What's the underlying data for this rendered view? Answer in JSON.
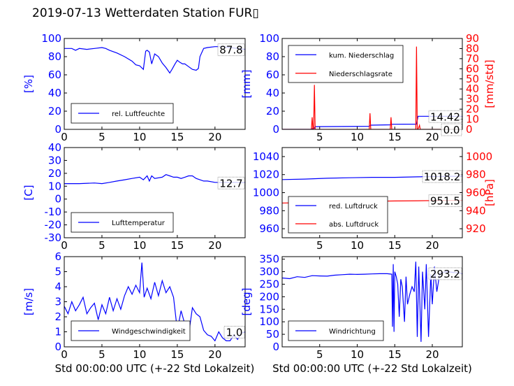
{
  "title": "2019-07-13 Wetterdaten Station FUR▯",
  "xlabel": "Std 00:00:00 UTC (+-22 Std Lokalzeit)",
  "colors": {
    "primary": "#0000ff",
    "secondary": "#ff0000",
    "axis": "#000000"
  },
  "chart_data": [
    {
      "id": "humidity",
      "type": "line",
      "ylabel": "[%]",
      "ylim": [
        0,
        100
      ],
      "yticks": [
        0,
        20,
        40,
        60,
        80,
        100
      ],
      "xlim": [
        0,
        24
      ],
      "xticks": [
        0,
        5,
        10,
        15,
        20
      ],
      "legend": "bottom-left",
      "last_value_label": "87.8",
      "series": [
        {
          "name": "rel. Luftfeuchte",
          "color": "#0000ff",
          "x": [
            0,
            1,
            1.5,
            2,
            3,
            4,
            5,
            5.5,
            6,
            7,
            8,
            9,
            9.5,
            10,
            10.5,
            10.8,
            11,
            11.3,
            11.6,
            12,
            12.5,
            13,
            13.5,
            14,
            14.3,
            14.7,
            15,
            15.3,
            15.7,
            16,
            16.5,
            17,
            17.5,
            17.8,
            18,
            18.5,
            19,
            20,
            21,
            22,
            23,
            24
          ],
          "y": [
            89,
            89,
            87,
            89,
            88,
            89,
            90,
            89,
            87,
            84,
            80,
            75,
            71,
            70,
            66,
            86,
            87,
            85,
            72,
            83,
            80,
            73,
            68,
            62,
            66,
            72,
            76,
            74,
            72,
            72,
            69,
            66,
            65,
            67,
            80,
            89,
            90,
            91,
            91,
            90,
            89,
            88
          ]
        }
      ]
    },
    {
      "id": "precipitation",
      "type": "line",
      "ylabel": "[mm]",
      "ylim": [
        0,
        100
      ],
      "yticks": [
        0,
        20,
        40,
        60,
        80,
        100
      ],
      "y2label": "[mm/std]",
      "y2lim": [
        0,
        90
      ],
      "y2ticks": [
        0,
        10,
        20,
        30,
        40,
        50,
        60,
        70,
        80,
        90
      ],
      "xlim": [
        0,
        24
      ],
      "xticks": [
        5,
        10,
        15,
        20
      ],
      "legend": "top-left",
      "last_value_labels": [
        "14.42",
        "0.0"
      ],
      "series": [
        {
          "name": "kum. Niederschlag",
          "color": "#0000ff",
          "axis": "left",
          "x": [
            0,
            3.9,
            4.0,
            4.3,
            4.4,
            11.6,
            11.8,
            14.4,
            14.6,
            17.9,
            18.1,
            24
          ],
          "y": [
            0,
            0,
            0.8,
            1.2,
            3.0,
            3.4,
            4.6,
            5.0,
            5.6,
            5.8,
            14.42,
            14.42
          ]
        },
        {
          "name": "Niederschlagsrate",
          "color": "#ff0000",
          "axis": "right",
          "x": [
            0,
            3.9,
            4.0,
            4.1,
            4.2,
            4.3,
            4.4,
            4.5,
            11.6,
            11.7,
            11.8,
            11.9,
            14.4,
            14.5,
            14.6,
            14.7,
            17.8,
            17.9,
            18.0,
            18.1,
            18.3,
            18.4,
            18.5,
            24
          ],
          "y": [
            0,
            0,
            12,
            0,
            0,
            44,
            0,
            0,
            0,
            16,
            0,
            0,
            0,
            12,
            0,
            0,
            0,
            82,
            0,
            0,
            4,
            0,
            0,
            0
          ]
        }
      ]
    },
    {
      "id": "temperature",
      "type": "line",
      "ylabel": "[C]",
      "ylim": [
        -30,
        40
      ],
      "yticks": [
        -30,
        -20,
        -10,
        0,
        10,
        20,
        30,
        40
      ],
      "xlim": [
        0,
        24
      ],
      "xticks": [
        0,
        5,
        10,
        15,
        20
      ],
      "legend": "bottom-left",
      "last_value_label": "12.7",
      "series": [
        {
          "name": "Lufttemperatur",
          "color": "#0000ff",
          "x": [
            0,
            2,
            4,
            5,
            6,
            7,
            8,
            9,
            10,
            10.5,
            11,
            11.3,
            11.6,
            12,
            13,
            13.5,
            14,
            14.5,
            15,
            15.5,
            16,
            16.5,
            17,
            17.5,
            18,
            18.5,
            19,
            20,
            21,
            22,
            23,
            24
          ],
          "y": [
            12,
            12,
            12.5,
            12,
            13,
            14,
            15,
            16,
            17,
            15,
            18,
            14,
            18,
            16,
            17,
            19,
            18,
            17,
            17,
            16,
            17,
            18,
            18,
            16,
            15,
            14,
            14,
            13,
            13,
            13,
            13,
            12.7
          ]
        }
      ]
    },
    {
      "id": "pressure",
      "type": "line",
      "ylabel": "",
      "ylim": [
        950,
        1050
      ],
      "yticks": [
        960,
        980,
        1000,
        1020,
        1040
      ],
      "y2label": "[hPa]",
      "y2lim": [
        910,
        1010
      ],
      "y2ticks": [
        920,
        940,
        960,
        980,
        1000
      ],
      "xlim": [
        0,
        24
      ],
      "xticks": [
        5,
        10,
        15,
        20
      ],
      "legend": "bottom-left",
      "last_value_labels": [
        "1018.2",
        "951.5"
      ],
      "series": [
        {
          "name": "red. Luftdruck",
          "color": "#0000ff",
          "axis": "left",
          "x": [
            0,
            3,
            6,
            9,
            12,
            15,
            18,
            21,
            24
          ],
          "y": [
            1014.5,
            1015,
            1016,
            1016.5,
            1017,
            1017,
            1017.5,
            1018,
            1018.2
          ]
        },
        {
          "name": "abs. Luftdruck",
          "color": "#ff0000",
          "axis": "right",
          "x": [
            0,
            3,
            6,
            9,
            12,
            15,
            18,
            21,
            24
          ],
          "y": [
            948.5,
            948.8,
            949.5,
            950,
            950.5,
            950.8,
            951,
            951.3,
            951.5
          ]
        }
      ]
    },
    {
      "id": "wind_speed",
      "type": "line",
      "ylabel": "[m/s]",
      "ylim": [
        0,
        6
      ],
      "yticks": [
        0,
        1,
        2,
        3,
        4,
        5,
        6
      ],
      "xlim": [
        0,
        24
      ],
      "xticks": [
        0,
        5,
        10,
        15,
        20
      ],
      "legend": "bottom-left",
      "last_value_label": "1.0",
      "series": [
        {
          "name": "Windgeschwindigkeit",
          "color": "#0000ff",
          "x": [
            0,
            0.5,
            1,
            1.5,
            2,
            2.5,
            3,
            3.5,
            4,
            4.5,
            5,
            5.5,
            6,
            6.5,
            7,
            7.5,
            8,
            8.5,
            9,
            9.5,
            10,
            10.3,
            10.6,
            11,
            11.5,
            12,
            12.5,
            13,
            13.5,
            14,
            14.5,
            15,
            15.5,
            16,
            16.5,
            17,
            17.5,
            18,
            18.5,
            19,
            19.5,
            20,
            20.5,
            21,
            21.5,
            22,
            22.5,
            23,
            23.5,
            24
          ],
          "y": [
            2.7,
            2.2,
            3.0,
            2.4,
            2.8,
            3.3,
            2.2,
            2.6,
            2.9,
            1.8,
            2.8,
            2.2,
            3.3,
            2.4,
            3.2,
            2.5,
            3.4,
            4.0,
            3.5,
            4.1,
            3.6,
            5.6,
            3.3,
            3.9,
            3.2,
            4.3,
            3.4,
            4.4,
            3.6,
            4.0,
            3.3,
            1.1,
            2.4,
            1.5,
            0.8,
            2.6,
            2.2,
            2.0,
            1.1,
            0.8,
            0.7,
            0.4,
            1.0,
            0.6,
            0.4,
            0.4,
            0.8,
            0.5,
            0.9,
            1.0
          ]
        }
      ]
    },
    {
      "id": "wind_direction",
      "type": "line",
      "ylabel": "[deg]",
      "ylim": [
        0,
        360
      ],
      "yticks": [
        0,
        50,
        100,
        150,
        200,
        250,
        300,
        350
      ],
      "xlim": [
        0,
        24
      ],
      "xticks": [
        5,
        10,
        15,
        20
      ],
      "legend": "bottom-left",
      "last_value_label": "293.2",
      "series": [
        {
          "name": "Windrichtung",
          "color": "#0000ff",
          "x": [
            0,
            1,
            2,
            3,
            4,
            5,
            6,
            7,
            8,
            9,
            10,
            11,
            12,
            13,
            14,
            14.6,
            14.7,
            14.8,
            14.9,
            15,
            15.2,
            15.4,
            15.6,
            15.8,
            16,
            16.3,
            16.5,
            16.7,
            17,
            17.3,
            17.6,
            17.8,
            18,
            18.2,
            18.5,
            18.7,
            19,
            19.2,
            19.5,
            19.8,
            20,
            20.3,
            20.6,
            21,
            22,
            23,
            24
          ],
          "y": [
            275,
            272,
            280,
            277,
            284,
            283,
            282,
            286,
            288,
            290,
            289,
            290,
            291,
            292,
            292,
            290,
            80,
            330,
            60,
            300,
            280,
            250,
            120,
            270,
            240,
            100,
            280,
            170,
            210,
            240,
            220,
            340,
            40,
            320,
            20,
            300,
            150,
            330,
            40,
            290,
            170,
            320,
            220,
            295,
            300,
            296,
            293.2
          ]
        }
      ]
    }
  ]
}
